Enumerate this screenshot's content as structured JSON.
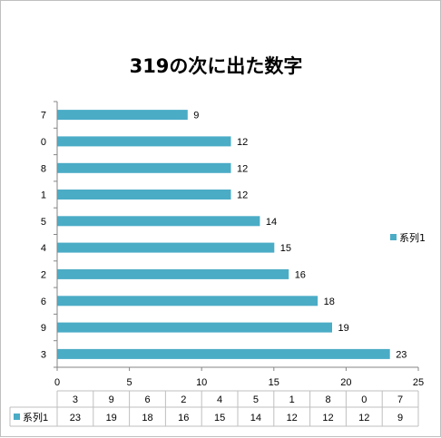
{
  "chart_data": {
    "type": "bar",
    "orientation": "horizontal",
    "title": "319の次に出た数字",
    "categories": [
      "3",
      "9",
      "6",
      "2",
      "4",
      "5",
      "1",
      "8",
      "0",
      "7"
    ],
    "series": [
      {
        "name": "系列1",
        "values": [
          23,
          19,
          18,
          16,
          15,
          14,
          12,
          12,
          12,
          9
        ],
        "color": "#4bacc6"
      }
    ],
    "xlim": [
      0,
      25
    ],
    "x_ticks": [
      0,
      5,
      10,
      15,
      20,
      25
    ],
    "grid": false,
    "legend": "right",
    "data_labels": true,
    "data_table": true
  }
}
